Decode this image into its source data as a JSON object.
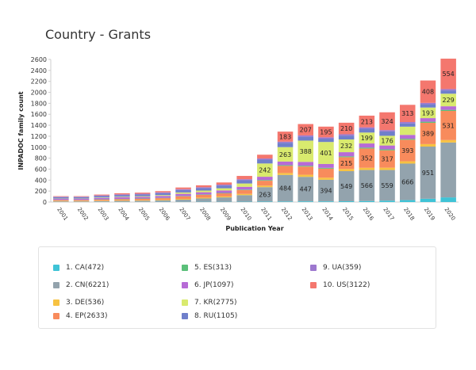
{
  "page": {
    "title": "Country - Grants"
  },
  "chart_data": {
    "type": "bar",
    "stacked": true,
    "title": "Country - Grants",
    "xlabel": "Publication Year",
    "ylabel": "INPADOC family count",
    "ylim": [
      0,
      2600
    ],
    "yticks": [
      0,
      200,
      400,
      600,
      800,
      1000,
      1200,
      1400,
      1600,
      1800,
      2000,
      2200,
      2400,
      2600
    ],
    "categories": [
      "2001",
      "2002",
      "2003",
      "2004",
      "2005",
      "2006",
      "2007",
      "2008",
      "2009",
      "2010",
      "2011",
      "2012",
      "2013",
      "2014",
      "2015",
      "2016",
      "2017",
      "2018",
      "2019",
      "2020"
    ],
    "series": [
      {
        "name": "1. CA(472)",
        "color": "#3fc3d6",
        "values": [
          2,
          2,
          3,
          3,
          3,
          4,
          4,
          5,
          5,
          6,
          8,
          10,
          12,
          12,
          14,
          18,
          25,
          35,
          60,
          85
        ]
      },
      {
        "name": "2. CN(6221)",
        "color": "#93a3ad",
        "values": [
          10,
          10,
          15,
          18,
          20,
          25,
          40,
          60,
          80,
          120,
          263,
          484,
          447,
          394,
          549,
          566,
          559,
          666,
          951,
          1000
        ]
      },
      {
        "name": "3. DE(536)",
        "color": "#f7c242",
        "values": [
          8,
          8,
          9,
          10,
          11,
          12,
          14,
          16,
          18,
          22,
          28,
          35,
          38,
          38,
          40,
          40,
          42,
          42,
          45,
          45
        ]
      },
      {
        "name": "4. EP(2633)",
        "color": "#f88b5c",
        "values": [
          15,
          15,
          18,
          22,
          25,
          30,
          45,
          50,
          55,
          70,
          90,
          130,
          150,
          165,
          215,
          352,
          317,
          393,
          389,
          531
        ]
      },
      {
        "name": "5. ES(313)",
        "color": "#5bc07a",
        "values": [
          4,
          4,
          5,
          5,
          6,
          6,
          7,
          8,
          8,
          10,
          12,
          14,
          15,
          15,
          16,
          17,
          18,
          18,
          20,
          20
        ]
      },
      {
        "name": "6. JP(1097)",
        "color": "#b76bd6",
        "values": [
          20,
          20,
          25,
          30,
          30,
          35,
          40,
          40,
          45,
          50,
          60,
          65,
          70,
          70,
          75,
          75,
          70,
          70,
          65,
          65
        ]
      },
      {
        "name": "7. KR(2775)",
        "color": "#d9ea6e",
        "values": [
          5,
          5,
          8,
          10,
          12,
          15,
          25,
          30,
          40,
          60,
          242,
          263,
          388,
          401,
          232,
          199,
          176,
          150,
          193,
          229
        ]
      },
      {
        "name": "8. RU(1105)",
        "color": "#6f7fcb",
        "values": [
          25,
          25,
          28,
          30,
          32,
          35,
          45,
          45,
          50,
          60,
          70,
          80,
          70,
          60,
          70,
          70,
          80,
          60,
          60,
          60
        ]
      },
      {
        "name": "9. UA(359)",
        "color": "#9d78cf",
        "values": [
          8,
          8,
          10,
          12,
          12,
          15,
          15,
          16,
          16,
          18,
          20,
          20,
          25,
          25,
          25,
          25,
          25,
          25,
          25,
          25
        ]
      },
      {
        "name": "10. US(3122)",
        "color": "#f4776e",
        "values": [
          10,
          10,
          15,
          20,
          20,
          22,
          30,
          35,
          40,
          60,
          70,
          183,
          207,
          195,
          210,
          213,
          324,
          313,
          408,
          554
        ]
      }
    ],
    "data_labels": {
      "2. CN(6221)": [
        null,
        null,
        null,
        null,
        null,
        null,
        null,
        null,
        null,
        null,
        "263",
        "484",
        "447",
        "394",
        "549",
        "566",
        "559",
        "666",
        "951",
        null
      ],
      "4. EP(2633)": [
        null,
        null,
        null,
        null,
        null,
        null,
        null,
        null,
        null,
        null,
        null,
        null,
        null,
        null,
        "215",
        "352",
        "317",
        "393",
        "389",
        "531"
      ],
      "7. KR(2775)": [
        null,
        null,
        null,
        null,
        null,
        null,
        null,
        null,
        null,
        null,
        "242",
        "263",
        "388",
        "401",
        "232",
        "199",
        "176",
        null,
        "193",
        "229"
      ],
      "10. US(3122)": [
        null,
        null,
        null,
        null,
        null,
        null,
        null,
        null,
        null,
        null,
        null,
        "183",
        "207",
        "195",
        "210",
        "213",
        "324",
        "313",
        "408",
        "554"
      ]
    },
    "grid": false
  },
  "legend": {
    "items": [
      {
        "label": "1. CA(472)",
        "color": "#3fc3d6"
      },
      {
        "label": "2. CN(6221)",
        "color": "#93a3ad"
      },
      {
        "label": "3. DE(536)",
        "color": "#f7c242"
      },
      {
        "label": "4. EP(2633)",
        "color": "#f88b5c"
      },
      {
        "label": "5. ES(313)",
        "color": "#5bc07a"
      },
      {
        "label": "6. JP(1097)",
        "color": "#b76bd6"
      },
      {
        "label": "7. KR(2775)",
        "color": "#d9ea6e"
      },
      {
        "label": "8. RU(1105)",
        "color": "#6f7fcb"
      },
      {
        "label": "9. UA(359)",
        "color": "#9d78cf"
      },
      {
        "label": "10. US(3122)",
        "color": "#f4776e"
      }
    ]
  }
}
